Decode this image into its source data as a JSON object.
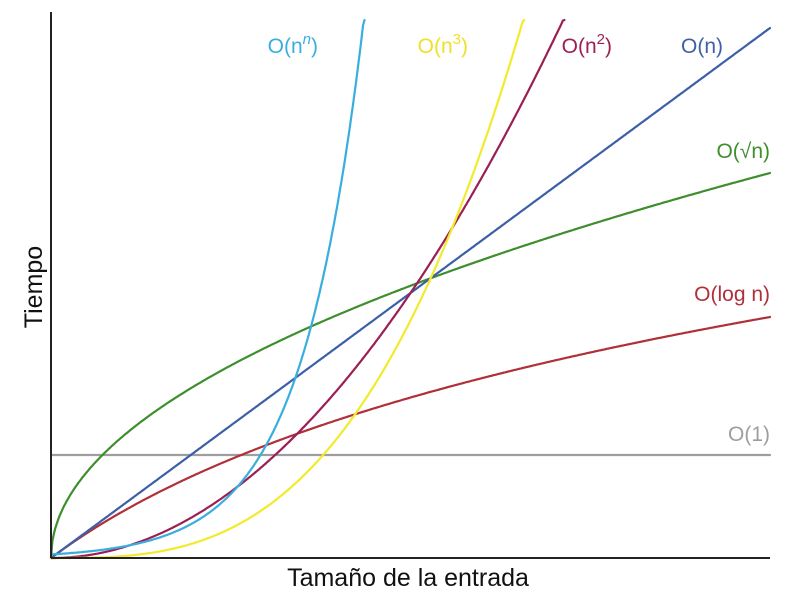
{
  "chart_data": {
    "type": "line",
    "title": "",
    "xlabel": "Tamaño de la entrada",
    "ylabel": "Tiempo",
    "grid": false,
    "legend": "labels at curve ends",
    "series": [
      {
        "name": "O(1)",
        "label_base": "O(1)",
        "label_sup": "",
        "label_close": "",
        "color": "#9e9e9e"
      },
      {
        "name": "O(log n)",
        "label_base": "O(log n)",
        "label_sup": "",
        "label_close": "",
        "color": "#b0303a"
      },
      {
        "name": "O(√n)",
        "label_base": "O(√n)",
        "label_sup": "",
        "label_close": "",
        "color": "#3e8e2e"
      },
      {
        "name": "O(n)",
        "label_base": "O(n)",
        "label_sup": "",
        "label_close": "",
        "color": "#3d5fa8"
      },
      {
        "name": "O(n2)",
        "label_base": "O(n",
        "label_sup": "2",
        "label_close": ")",
        "color": "#9b1f55"
      },
      {
        "name": "O(n3)",
        "label_base": "O(n",
        "label_sup": "3",
        "label_close": ")",
        "color": "#f2ea2a"
      },
      {
        "name": "O(nn)",
        "label_base": "O(n",
        "label_sup": "n",
        "label_close": ")",
        "color": "#39aede"
      }
    ]
  }
}
